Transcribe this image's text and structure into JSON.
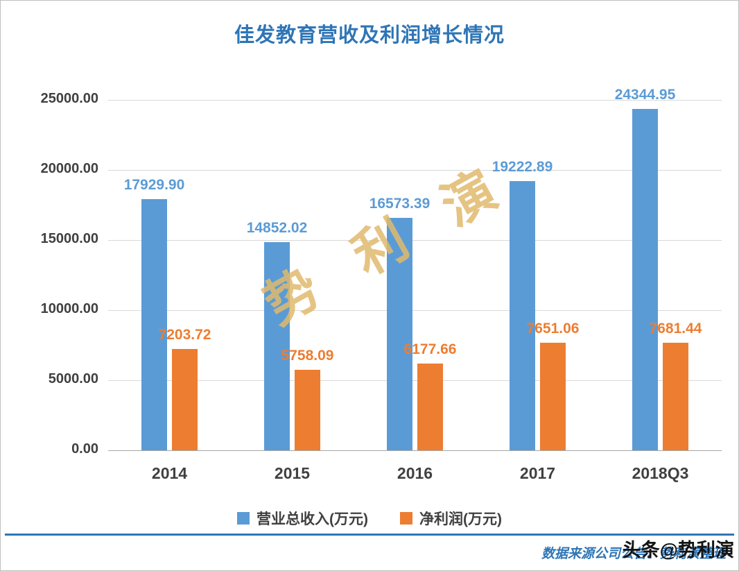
{
  "title": "佳发教育营收及利润增长情况",
  "watermark": "势利演",
  "footer": {
    "source": "数据来源公司公告、势利演整理",
    "badge": "头条@势利演"
  },
  "colors": {
    "revenue": "#5B9BD5",
    "profit": "#ED7D31",
    "title": "#2E75B6",
    "axis_text": "#404040",
    "gridline": "#D9D9D9",
    "footer_text": "#2E75B6",
    "watermark": "#E0BA6D"
  },
  "chart_data": {
    "type": "bar",
    "title": "佳发教育营收及利润增长情况",
    "categories": [
      "2014",
      "2015",
      "2016",
      "2017",
      "2018Q3"
    ],
    "series": [
      {
        "name": "营业总收入(万元)",
        "color": "#5B9BD5",
        "values": [
          17929.9,
          14852.02,
          16573.39,
          19222.89,
          24344.95
        ]
      },
      {
        "name": "净利润(万元)",
        "color": "#ED7D31",
        "values": [
          7203.72,
          5758.09,
          6177.66,
          7651.06,
          7681.44
        ]
      }
    ],
    "xlabel": "",
    "ylabel": "",
    "ylim": [
      0,
      25000
    ],
    "ytick_step": 5000,
    "ytick_labels": [
      "25000.00",
      "20000.00",
      "15000.00",
      "10000.00",
      "5000.00",
      "0.00"
    ],
    "grid": true,
    "legend_position": "bottom",
    "value_label_decimals": 2
  }
}
